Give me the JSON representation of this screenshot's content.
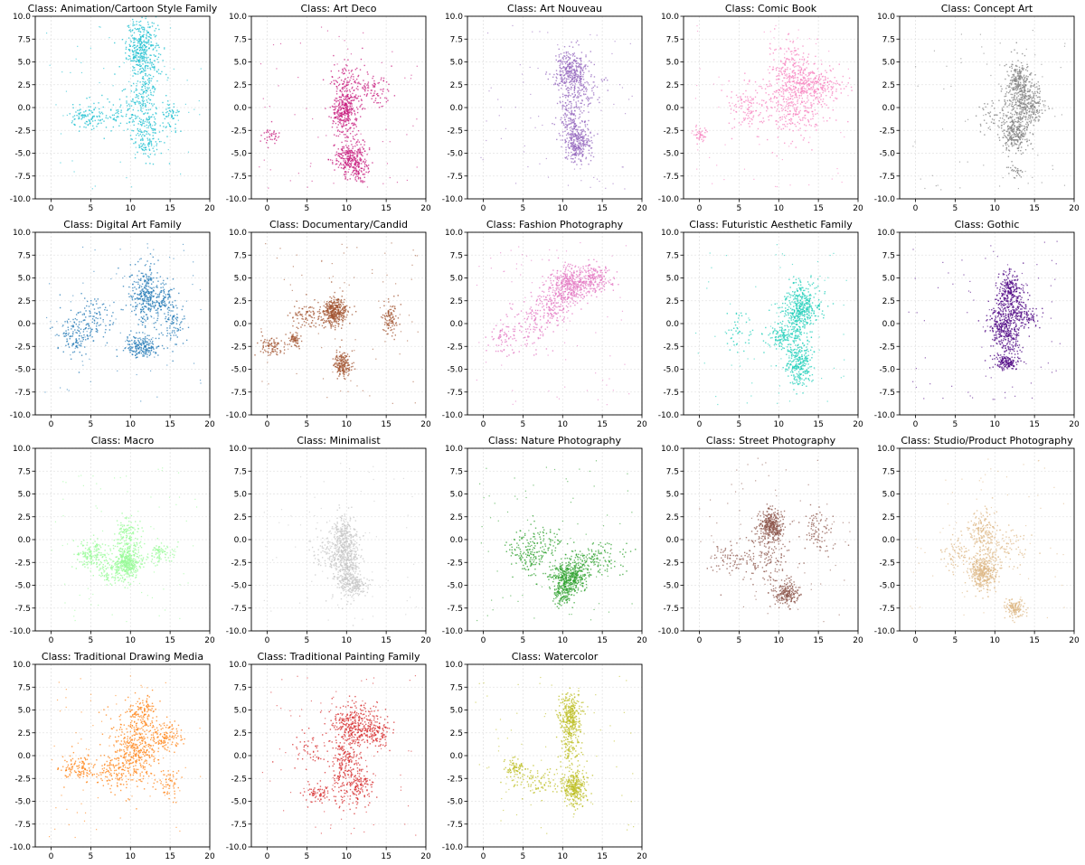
{
  "figure": {
    "axes_common": {
      "xlim": [
        -2,
        20
      ],
      "ylim": [
        -10,
        10
      ],
      "x_ticks": [
        0,
        5,
        10,
        15,
        20
      ],
      "y_ticks": [
        10.0,
        7.5,
        5.0,
        2.5,
        0.0,
        -2.5,
        -5.0,
        -7.5,
        -10.0
      ],
      "x_tick_labels": [
        "0",
        "5",
        "10",
        "15",
        "20"
      ],
      "y_tick_labels": [
        "10.0",
        "7.5",
        "5.0",
        "2.5",
        "0.0",
        "-2.5",
        "-5.0",
        "-7.5",
        "-10.0"
      ],
      "grid": true
    }
  },
  "chart_data": [
    {
      "type": "scatter",
      "title": "Class: Animation/Cartoon Style Family",
      "color": "#17becf",
      "xlim": [
        -2,
        20
      ],
      "ylim": [
        -10,
        10
      ],
      "grid": true,
      "clusters": [
        {
          "x": 11.5,
          "y": 6.5,
          "sx": 1.0,
          "sy": 1.6,
          "w": 4
        },
        {
          "x": 11.5,
          "y": 1.0,
          "sx": 1.2,
          "sy": 2.0,
          "w": 2
        },
        {
          "x": 12.0,
          "y": -3.0,
          "sx": 1.0,
          "sy": 1.5,
          "w": 1.5
        },
        {
          "x": 4.5,
          "y": -1.2,
          "sx": 1.0,
          "sy": 0.7,
          "w": 1
        },
        {
          "x": 15.0,
          "y": -1.0,
          "sx": 0.6,
          "sy": 0.8,
          "w": 0.6
        },
        {
          "x": 8.0,
          "y": -1.0,
          "sx": 1.0,
          "sy": 0.8,
          "w": 0.6
        }
      ]
    },
    {
      "type": "scatter",
      "title": "Class: Art Deco",
      "color": "#c7197c",
      "xlim": [
        -2,
        20
      ],
      "ylim": [
        -10,
        10
      ],
      "grid": true,
      "clusters": [
        {
          "x": 9.8,
          "y": -0.5,
          "sx": 0.8,
          "sy": 1.2,
          "w": 2.5
        },
        {
          "x": 10.5,
          "y": -5.5,
          "sx": 1.0,
          "sy": 0.9,
          "w": 2.5
        },
        {
          "x": 10.0,
          "y": 2.5,
          "sx": 1.0,
          "sy": 1.5,
          "w": 1.2
        },
        {
          "x": 13.0,
          "y": 2.0,
          "sx": 1.2,
          "sy": 1.0,
          "w": 0.8
        },
        {
          "x": 11.5,
          "y": -7.0,
          "sx": 0.5,
          "sy": 0.6,
          "w": 0.5
        },
        {
          "x": 0.5,
          "y": -3.0,
          "sx": 0.6,
          "sy": 0.5,
          "w": 0.3
        }
      ]
    },
    {
      "type": "scatter",
      "title": "Class: Art Nouveau",
      "color": "#9467bd",
      "xlim": [
        -2,
        20
      ],
      "ylim": [
        -10,
        10
      ],
      "grid": true,
      "clusters": [
        {
          "x": 11.0,
          "y": 4.0,
          "sx": 1.0,
          "sy": 1.2,
          "w": 3
        },
        {
          "x": 11.0,
          "y": -1.0,
          "sx": 0.8,
          "sy": 1.5,
          "w": 1.5
        },
        {
          "x": 12.0,
          "y": -4.0,
          "sx": 0.8,
          "sy": 1.0,
          "w": 2.5
        },
        {
          "x": 12.5,
          "y": 2.0,
          "sx": 1.2,
          "sy": 1.2,
          "w": 0.8
        }
      ]
    },
    {
      "type": "scatter",
      "title": "Class: Comic Book",
      "color": "#f781bf",
      "xlim": [
        -2,
        20
      ],
      "ylim": [
        -10,
        10
      ],
      "grid": true,
      "clusters": [
        {
          "x": 12.0,
          "y": 0.5,
          "sx": 2.0,
          "sy": 2.0,
          "w": 2.5
        },
        {
          "x": 14.5,
          "y": 2.5,
          "sx": 2.0,
          "sy": 1.0,
          "w": 1.5
        },
        {
          "x": 11.5,
          "y": 4.5,
          "sx": 1.2,
          "sy": 1.5,
          "w": 1
        },
        {
          "x": 6.0,
          "y": 0.0,
          "sx": 1.5,
          "sy": 1.5,
          "w": 0.8
        },
        {
          "x": 0.0,
          "y": -3.0,
          "sx": 0.5,
          "sy": 0.4,
          "w": 0.3
        }
      ]
    },
    {
      "type": "scatter",
      "title": "Class: Concept Art",
      "color": "#7f7f7f",
      "xlim": [
        -2,
        20
      ],
      "ylim": [
        -10,
        10
      ],
      "grid": true,
      "clusters": [
        {
          "x": 13.0,
          "y": 3.0,
          "sx": 0.8,
          "sy": 1.2,
          "w": 2.5
        },
        {
          "x": 13.5,
          "y": 0.0,
          "sx": 1.0,
          "sy": 1.5,
          "w": 3
        },
        {
          "x": 12.5,
          "y": -3.0,
          "sx": 0.8,
          "sy": 0.9,
          "w": 2.5
        },
        {
          "x": 15.0,
          "y": 0.5,
          "sx": 0.6,
          "sy": 1.0,
          "w": 1
        },
        {
          "x": 12.5,
          "y": -7.0,
          "sx": 0.4,
          "sy": 0.4,
          "w": 0.3
        },
        {
          "x": 10.0,
          "y": -1.0,
          "sx": 1.2,
          "sy": 1.0,
          "w": 0.6
        }
      ]
    },
    {
      "type": "scatter",
      "title": "Class: Digital Art Family",
      "color": "#1f77b4",
      "xlim": [
        -2,
        20
      ],
      "ylim": [
        -10,
        10
      ],
      "grid": true,
      "clusters": [
        {
          "x": 12.0,
          "y": 3.0,
          "sx": 1.0,
          "sy": 1.8,
          "w": 3
        },
        {
          "x": 11.5,
          "y": -2.5,
          "sx": 1.2,
          "sy": 0.6,
          "w": 2
        },
        {
          "x": 14.0,
          "y": 2.5,
          "sx": 0.8,
          "sy": 0.8,
          "w": 1
        },
        {
          "x": 5.0,
          "y": 0.5,
          "sx": 1.5,
          "sy": 1.2,
          "w": 1.2
        },
        {
          "x": 3.0,
          "y": -1.5,
          "sx": 1.2,
          "sy": 1.0,
          "w": 1
        },
        {
          "x": 15.5,
          "y": 0.0,
          "sx": 0.8,
          "sy": 1.2,
          "w": 0.8
        }
      ]
    },
    {
      "type": "scatter",
      "title": "Class: Documentary/Candid",
      "color": "#a0522d",
      "xlim": [
        -2,
        20
      ],
      "ylim": [
        -10,
        10
      ],
      "grid": true,
      "clusters": [
        {
          "x": 8.5,
          "y": 1.3,
          "sx": 0.8,
          "sy": 0.8,
          "w": 3
        },
        {
          "x": 9.5,
          "y": -4.5,
          "sx": 0.6,
          "sy": 0.7,
          "w": 1.5
        },
        {
          "x": 0.5,
          "y": -2.5,
          "sx": 0.8,
          "sy": 0.5,
          "w": 0.7
        },
        {
          "x": 5.0,
          "y": 1.0,
          "sx": 1.0,
          "sy": 0.8,
          "w": 0.7
        },
        {
          "x": 15.5,
          "y": 0.5,
          "sx": 0.6,
          "sy": 1.0,
          "w": 0.8
        },
        {
          "x": 3.5,
          "y": -1.8,
          "sx": 0.5,
          "sy": 0.4,
          "w": 0.5
        }
      ]
    },
    {
      "type": "scatter",
      "title": "Class: Fashion Photography",
      "color": "#e377c2",
      "xlim": [
        -2,
        20
      ],
      "ylim": [
        -10,
        10
      ],
      "grid": true,
      "clusters": [
        {
          "x": 11.0,
          "y": 4.0,
          "sx": 1.2,
          "sy": 1.0,
          "w": 3
        },
        {
          "x": 14.0,
          "y": 5.0,
          "sx": 1.2,
          "sy": 0.8,
          "w": 1.5
        },
        {
          "x": 8.5,
          "y": 2.0,
          "sx": 1.2,
          "sy": 1.2,
          "w": 1.2
        },
        {
          "x": 6.0,
          "y": 0.0,
          "sx": 1.5,
          "sy": 1.5,
          "w": 0.8
        },
        {
          "x": 2.5,
          "y": -1.5,
          "sx": 1.0,
          "sy": 1.0,
          "w": 0.5
        }
      ]
    },
    {
      "type": "scatter",
      "title": "Class: Futuristic Aesthetic Family",
      "color": "#1ccdb8",
      "xlim": [
        -2,
        20
      ],
      "ylim": [
        -10,
        10
      ],
      "grid": true,
      "clusters": [
        {
          "x": 12.5,
          "y": 1.5,
          "sx": 0.9,
          "sy": 1.5,
          "w": 3.5
        },
        {
          "x": 12.5,
          "y": -4.5,
          "sx": 0.8,
          "sy": 1.3,
          "w": 2.5
        },
        {
          "x": 10.5,
          "y": -1.5,
          "sx": 1.2,
          "sy": 0.8,
          "w": 1.2
        },
        {
          "x": 14.0,
          "y": 2.0,
          "sx": 1.0,
          "sy": 1.2,
          "w": 0.8
        },
        {
          "x": 5.0,
          "y": -1.0,
          "sx": 1.0,
          "sy": 1.0,
          "w": 0.4
        }
      ]
    },
    {
      "type": "scatter",
      "title": "Class: Gothic",
      "color": "#4b0082",
      "xlim": [
        -2,
        20
      ],
      "ylim": [
        -10,
        10
      ],
      "grid": true,
      "clusters": [
        {
          "x": 12.0,
          "y": 3.5,
          "sx": 0.8,
          "sy": 1.0,
          "w": 2.5
        },
        {
          "x": 11.0,
          "y": 0.0,
          "sx": 0.9,
          "sy": 1.5,
          "w": 3
        },
        {
          "x": 13.5,
          "y": 1.0,
          "sx": 1.0,
          "sy": 0.8,
          "w": 1.5
        },
        {
          "x": 11.5,
          "y": -4.3,
          "sx": 0.8,
          "sy": 0.4,
          "w": 1.5
        },
        {
          "x": 12.0,
          "y": -2.0,
          "sx": 0.8,
          "sy": 1.0,
          "w": 1
        }
      ]
    },
    {
      "type": "scatter",
      "title": "Class: Macro",
      "color": "#98fb98",
      "xlim": [
        -2,
        20
      ],
      "ylim": [
        -10,
        10
      ],
      "grid": true,
      "clusters": [
        {
          "x": 9.5,
          "y": -2.5,
          "sx": 0.8,
          "sy": 0.8,
          "w": 3
        },
        {
          "x": 5.0,
          "y": -1.5,
          "sx": 1.0,
          "sy": 0.7,
          "w": 1.2
        },
        {
          "x": 9.5,
          "y": 0.5,
          "sx": 0.8,
          "sy": 1.0,
          "w": 1
        },
        {
          "x": 13.5,
          "y": -1.5,
          "sx": 1.2,
          "sy": 0.6,
          "w": 0.7
        },
        {
          "x": 7.5,
          "y": -3.5,
          "sx": 1.0,
          "sy": 0.7,
          "w": 0.7
        }
      ]
    },
    {
      "type": "scatter",
      "title": "Class: Minimalist",
      "color": "#c7c7c7",
      "xlim": [
        -2,
        20
      ],
      "ylim": [
        -10,
        10
      ],
      "grid": true,
      "clusters": [
        {
          "x": 10.0,
          "y": -2.5,
          "sx": 0.9,
          "sy": 1.8,
          "w": 3
        },
        {
          "x": 9.5,
          "y": 0.5,
          "sx": 0.8,
          "sy": 1.2,
          "w": 1.2
        },
        {
          "x": 11.0,
          "y": -5.0,
          "sx": 0.8,
          "sy": 0.6,
          "w": 1
        },
        {
          "x": 7.5,
          "y": -1.5,
          "sx": 1.0,
          "sy": 1.0,
          "w": 0.5
        }
      ]
    },
    {
      "type": "scatter",
      "title": "Class: Nature Photography",
      "color": "#2ca02c",
      "xlim": [
        -2,
        20
      ],
      "ylim": [
        -10,
        10
      ],
      "grid": true,
      "clusters": [
        {
          "x": 11.0,
          "y": -4.0,
          "sx": 1.2,
          "sy": 0.9,
          "w": 3.5
        },
        {
          "x": 10.0,
          "y": -6.0,
          "sx": 0.6,
          "sy": 0.7,
          "w": 1
        },
        {
          "x": 5.5,
          "y": -1.5,
          "sx": 1.2,
          "sy": 1.2,
          "w": 1.2
        },
        {
          "x": 14.5,
          "y": -2.0,
          "sx": 1.5,
          "sy": 0.8,
          "w": 1
        },
        {
          "x": 8.0,
          "y": -0.5,
          "sx": 1.0,
          "sy": 1.2,
          "w": 0.6
        }
      ]
    },
    {
      "type": "scatter",
      "title": "Class: Street Photography",
      "color": "#8c564b",
      "xlim": [
        -2,
        20
      ],
      "ylim": [
        -10,
        10
      ],
      "grid": true,
      "clusters": [
        {
          "x": 9.0,
          "y": 1.5,
          "sx": 0.8,
          "sy": 0.8,
          "w": 2.5
        },
        {
          "x": 11.0,
          "y": -5.8,
          "sx": 0.8,
          "sy": 0.7,
          "w": 1.5
        },
        {
          "x": 8.5,
          "y": -1.5,
          "sx": 1.5,
          "sy": 1.5,
          "w": 1
        },
        {
          "x": 15.0,
          "y": 1.0,
          "sx": 1.0,
          "sy": 1.2,
          "w": 0.6
        },
        {
          "x": 4.0,
          "y": -2.0,
          "sx": 1.2,
          "sy": 1.0,
          "w": 0.5
        }
      ]
    },
    {
      "type": "scatter",
      "title": "Class: Studio/Product Photography",
      "color": "#deb887",
      "xlim": [
        -2,
        20
      ],
      "ylim": [
        -10,
        10
      ],
      "grid": true,
      "clusters": [
        {
          "x": 8.5,
          "y": -3.5,
          "sx": 0.9,
          "sy": 1.0,
          "w": 3
        },
        {
          "x": 8.5,
          "y": 1.0,
          "sx": 0.8,
          "sy": 1.2,
          "w": 1.2
        },
        {
          "x": 12.5,
          "y": -7.5,
          "sx": 0.6,
          "sy": 0.5,
          "w": 1
        },
        {
          "x": 11.5,
          "y": -1.0,
          "sx": 1.5,
          "sy": 1.2,
          "w": 0.6
        },
        {
          "x": 5.0,
          "y": -1.5,
          "sx": 1.0,
          "sy": 1.0,
          "w": 0.5
        }
      ]
    },
    {
      "type": "scatter",
      "title": "Class: Traditional Drawing Media",
      "color": "#ff7f0e",
      "xlim": [
        -2,
        20
      ],
      "ylim": [
        -10,
        10
      ],
      "grid": true,
      "clusters": [
        {
          "x": 10.5,
          "y": 0.5,
          "sx": 1.5,
          "sy": 2.0,
          "w": 3.5
        },
        {
          "x": 11.5,
          "y": 4.5,
          "sx": 1.0,
          "sy": 1.0,
          "w": 1
        },
        {
          "x": 14.5,
          "y": 2.0,
          "sx": 1.0,
          "sy": 0.8,
          "w": 1
        },
        {
          "x": 3.5,
          "y": -1.5,
          "sx": 1.2,
          "sy": 0.8,
          "w": 1
        },
        {
          "x": 7.5,
          "y": -2.0,
          "sx": 1.2,
          "sy": 1.0,
          "w": 0.8
        },
        {
          "x": 15.0,
          "y": -3.0,
          "sx": 0.8,
          "sy": 1.0,
          "w": 0.5
        }
      ]
    },
    {
      "type": "scatter",
      "title": "Class: Traditional Painting Family",
      "color": "#d62728",
      "xlim": [
        -2,
        20
      ],
      "ylim": [
        -10,
        10
      ],
      "grid": true,
      "clusters": [
        {
          "x": 11.0,
          "y": 3.5,
          "sx": 1.5,
          "sy": 1.2,
          "w": 3
        },
        {
          "x": 10.0,
          "y": -1.0,
          "sx": 1.0,
          "sy": 2.0,
          "w": 2.5
        },
        {
          "x": 14.0,
          "y": 2.5,
          "sx": 1.0,
          "sy": 0.8,
          "w": 1.2
        },
        {
          "x": 12.0,
          "y": -3.5,
          "sx": 0.8,
          "sy": 1.0,
          "w": 1
        },
        {
          "x": 6.5,
          "y": -4.2,
          "sx": 1.0,
          "sy": 0.5,
          "w": 0.7
        },
        {
          "x": 5.5,
          "y": 0.5,
          "sx": 1.5,
          "sy": 1.5,
          "w": 0.5
        }
      ]
    },
    {
      "type": "scatter",
      "title": "Class: Watercolor",
      "color": "#bcbd22",
      "xlim": [
        -2,
        20
      ],
      "ylim": [
        -10,
        10
      ],
      "grid": true,
      "clusters": [
        {
          "x": 11.0,
          "y": 4.5,
          "sx": 0.7,
          "sy": 1.2,
          "w": 3
        },
        {
          "x": 11.5,
          "y": -3.5,
          "sx": 0.8,
          "sy": 1.0,
          "w": 3
        },
        {
          "x": 11.0,
          "y": 1.0,
          "sx": 0.6,
          "sy": 1.2,
          "w": 1
        },
        {
          "x": 4.0,
          "y": -1.5,
          "sx": 0.8,
          "sy": 0.6,
          "w": 0.8
        },
        {
          "x": 7.0,
          "y": -3.0,
          "sx": 1.5,
          "sy": 0.8,
          "w": 0.8
        }
      ]
    }
  ]
}
